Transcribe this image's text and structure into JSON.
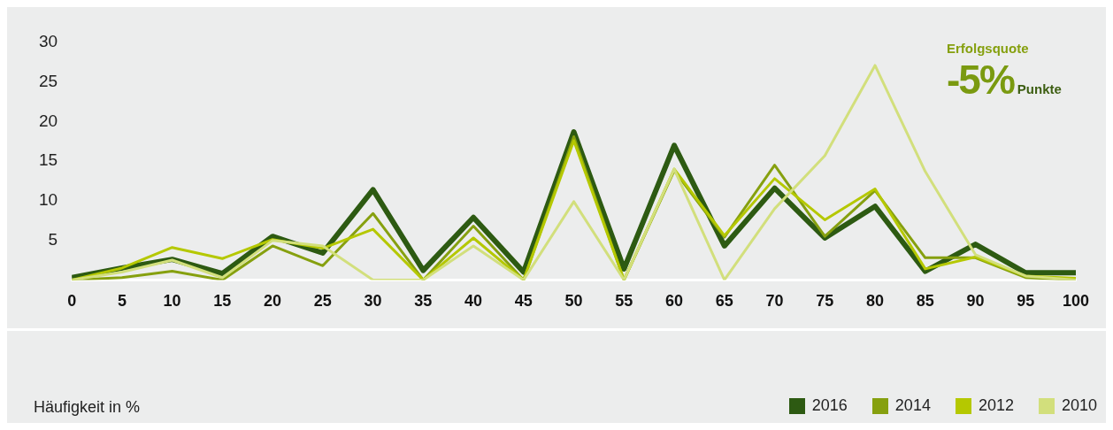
{
  "chart_data": {
    "type": "line",
    "annotations": [
      "Erfolgsquote",
      "-5%",
      "Punkte",
      "Häufigkeit in %"
    ],
    "x": [
      0,
      5,
      10,
      15,
      20,
      25,
      30,
      35,
      40,
      45,
      50,
      55,
      60,
      65,
      70,
      75,
      80,
      85,
      90,
      95,
      100
    ],
    "xlim": [
      0,
      100
    ],
    "xticks": [
      0,
      5,
      10,
      15,
      20,
      25,
      30,
      35,
      40,
      45,
      50,
      55,
      60,
      65,
      70,
      75,
      80,
      85,
      90,
      95,
      100
    ],
    "ylim": [
      0,
      30
    ],
    "yticks": [
      5,
      10,
      15,
      20,
      25,
      30
    ],
    "grid": false,
    "legend": "bottom right",
    "marker": "none",
    "line_style": "solid",
    "series": [
      {
        "name": "2010",
        "color": "#d2df7c",
        "values": [
          0,
          1,
          2.5,
          0.3,
          5,
          4.3,
          0,
          0,
          4.3,
          0,
          9.9,
          0,
          14,
          0,
          9,
          15.7,
          27.1,
          13.7,
          3.2,
          0.5,
          0
        ]
      },
      {
        "name": "2012",
        "color": "#b5c800",
        "values": [
          0,
          1.5,
          4.1,
          2.7,
          5.1,
          4,
          6.4,
          0,
          5.3,
          0,
          17.6,
          0,
          14,
          5.6,
          12.8,
          7.6,
          11.5,
          1.4,
          2.9,
          0.5,
          0.2
        ]
      },
      {
        "name": "2014",
        "color": "#86a00f",
        "values": [
          0,
          0.3,
          1.1,
          0,
          4.3,
          1.8,
          8.4,
          0,
          6.8,
          0,
          18.1,
          0,
          13.8,
          5.4,
          14.5,
          5.5,
          11.3,
          2.8,
          2.8,
          0.3,
          0
        ]
      },
      {
        "name": "2016",
        "color": "#2d5a12",
        "values": [
          0.3,
          1.5,
          2.6,
          0.8,
          5.5,
          3.4,
          11.4,
          1.2,
          7.9,
          1,
          18.7,
          1.4,
          17,
          4.3,
          11.6,
          5.3,
          9.3,
          1.1,
          4.5,
          0.9,
          0.9
        ]
      }
    ]
  }
}
